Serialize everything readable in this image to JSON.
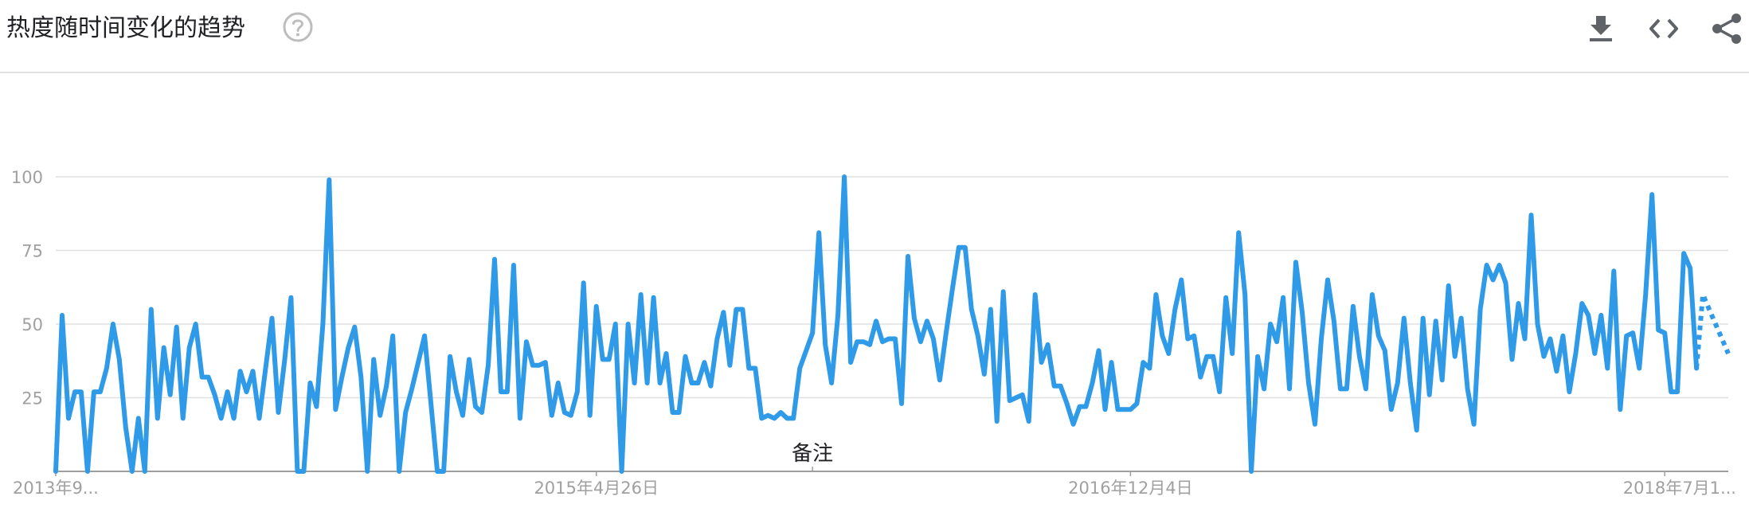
{
  "header": {
    "title": "热度随时间变化的趋势",
    "help_icon": "help-circle-icon",
    "actions": [
      {
        "name": "download",
        "icon": "download-icon"
      },
      {
        "name": "embed",
        "icon": "code-icon"
      },
      {
        "name": "share",
        "icon": "share-icon"
      }
    ]
  },
  "colors": {
    "line": "#2f9ae8",
    "grid": "#e0e0e0",
    "axis": "#9e9e9e",
    "tick_text": "#a0a0a0",
    "icon": "#5f6368",
    "help": "#bdbdbd"
  },
  "chart_data": {
    "type": "line",
    "title": "热度随时间变化的趋势",
    "xlabel": "",
    "ylabel": "",
    "ylim": [
      0,
      100
    ],
    "grid": true,
    "y_ticks": [
      "25",
      "50",
      "75",
      "100"
    ],
    "x_tick_labels": [
      {
        "label": "2013年9...",
        "index": 0
      },
      {
        "label": "2015年4月26日",
        "index": 85
      },
      {
        "label": "2016年12月4日",
        "index": 169
      },
      {
        "label": "2018年7月1...",
        "index": 253
      }
    ],
    "annotation": {
      "label": "备注",
      "index": 119
    },
    "partial_from_index": 258,
    "series": [
      {
        "values": [
          0,
          53,
          18,
          27,
          27,
          0,
          27,
          27,
          35,
          50,
          38,
          15,
          0,
          18,
          0,
          55,
          18,
          42,
          26,
          49,
          18,
          42,
          50,
          32,
          32,
          26,
          18,
          27,
          18,
          34,
          27,
          34,
          18,
          35,
          52,
          20,
          38,
          59,
          0,
          0,
          30,
          22,
          50,
          99,
          21,
          32,
          42,
          49,
          32,
          0,
          38,
          19,
          29,
          46,
          0,
          20,
          28,
          37,
          46,
          23,
          0,
          0,
          39,
          27,
          19,
          38,
          22,
          20,
          36,
          72,
          27,
          27,
          70,
          18,
          44,
          36,
          36,
          37,
          19,
          30,
          20,
          19,
          27,
          64,
          19,
          56,
          38,
          38,
          50,
          0,
          50,
          30,
          60,
          30,
          59,
          30,
          40,
          20,
          20,
          39,
          30,
          30,
          37,
          29,
          45,
          54,
          36,
          55,
          55,
          35,
          35,
          18,
          19,
          18,
          20,
          18,
          18,
          35,
          41,
          47,
          81,
          43,
          30,
          53,
          100,
          37,
          44,
          44,
          43,
          51,
          44,
          45,
          45,
          23,
          73,
          52,
          44,
          51,
          45,
          31,
          47,
          62,
          76,
          76,
          55,
          46,
          33,
          55,
          17,
          61,
          24,
          25,
          26,
          17,
          60,
          37,
          43,
          29,
          29,
          23,
          16,
          22,
          22,
          30,
          41,
          21,
          37,
          21,
          21,
          21,
          23,
          37,
          35,
          60,
          46,
          40,
          55,
          65,
          45,
          46,
          32,
          39,
          39,
          27,
          59,
          40,
          81,
          60,
          0,
          39,
          28,
          50,
          44,
          59,
          28,
          71,
          54,
          30,
          16,
          45,
          65,
          51,
          28,
          28,
          56,
          39,
          28,
          60,
          46,
          41,
          21,
          30,
          52,
          30,
          14,
          52,
          26,
          51,
          31,
          63,
          39,
          52,
          28,
          16,
          55,
          70,
          65,
          70,
          64,
          38,
          57,
          45,
          87,
          50,
          39,
          45,
          34,
          46,
          27,
          40,
          57,
          53,
          40,
          53,
          35,
          68,
          21,
          46,
          47,
          35,
          60,
          94,
          48,
          47,
          27,
          27,
          74,
          69,
          35,
          60,
          55,
          50,
          45,
          40
        ]
      }
    ]
  }
}
